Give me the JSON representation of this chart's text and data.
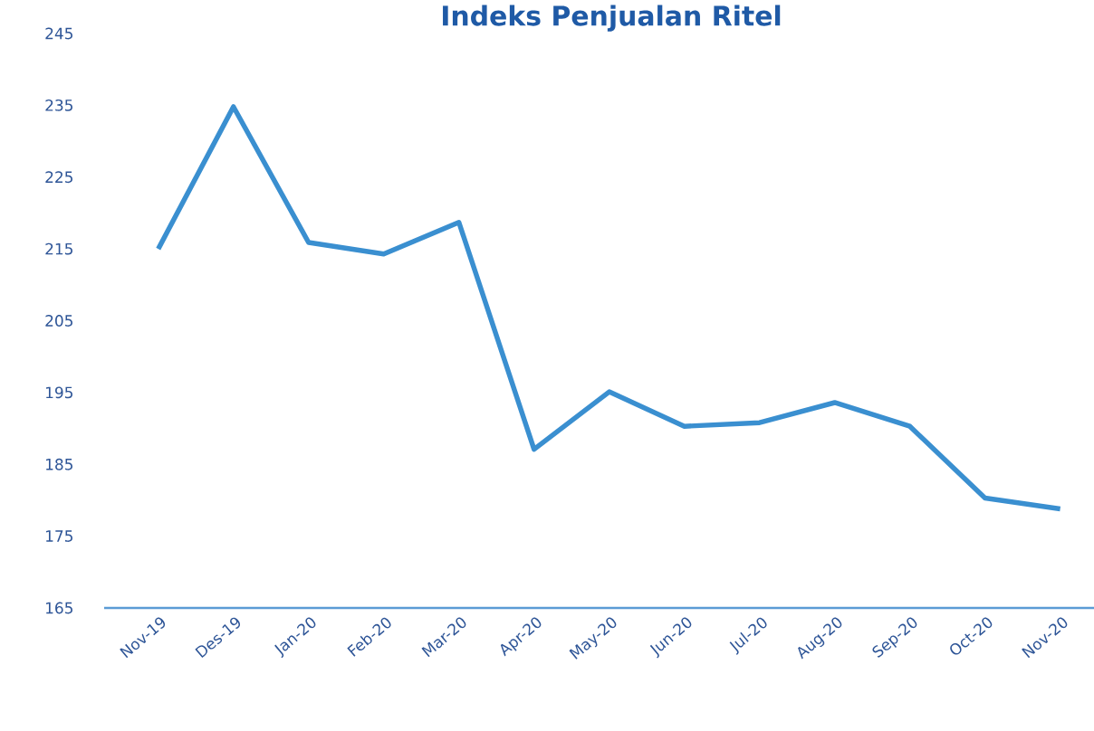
{
  "chart_data": {
    "type": "line",
    "title": "Indeks Penjualan Ritel",
    "categories": [
      "Nov-19",
      "Des-19",
      "Jan-20",
      "Feb-20",
      "Mar-20",
      "Apr-20",
      "May-20",
      "Jun-20",
      "Jul-20",
      "Aug-20",
      "Sep-20",
      "Oct-20",
      "Nov-20"
    ],
    "values": [
      215.0,
      234.8,
      215.9,
      214.3,
      218.7,
      187.1,
      195.1,
      190.3,
      190.8,
      193.6,
      190.3,
      180.3,
      178.8
    ],
    "color": "#3a8fd0",
    "ylim": [
      165,
      245
    ],
    "yticks": [
      165,
      175,
      185,
      195,
      205,
      215,
      225,
      235,
      245
    ]
  }
}
